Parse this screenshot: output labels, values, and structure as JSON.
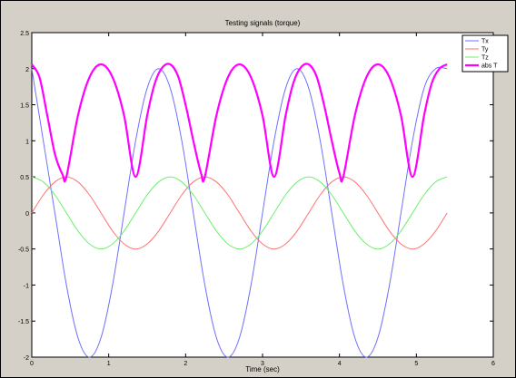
{
  "chart_data": {
    "type": "line",
    "title": "Testing signals (torque)",
    "xlabel": "Time (sec)",
    "ylabel": "",
    "xlim": [
      0,
      6
    ],
    "ylim": [
      -2,
      2.5
    ],
    "x_ticks": [
      "0",
      "1",
      "2",
      "3",
      "4",
      "5",
      "6"
    ],
    "y_ticks": [
      "-2",
      "-1.5",
      "-1",
      "-0.5",
      "0",
      "0.5",
      "1",
      "1.5",
      "2",
      "2.5"
    ],
    "grid": false,
    "legend_position": "top-right",
    "x_end": 5.4,
    "series": [
      {
        "name": "Tx",
        "color": "#6f6fff",
        "x": [
          0,
          0.3,
          0.45,
          0.6,
          0.75,
          0.9,
          1.05,
          1.2,
          1.35,
          1.5,
          1.65,
          1.8,
          1.95,
          2.1,
          2.25,
          2.4,
          2.55,
          2.7,
          2.85,
          3.0,
          3.15,
          3.3,
          3.45,
          3.6,
          3.75,
          3.9,
          4.05,
          4.2,
          4.35,
          4.5,
          4.65,
          4.8,
          4.95,
          5.1,
          5.25,
          5.4
        ],
        "y": [
          2.0,
          0.0,
          -1.0,
          -1.73,
          -2.0,
          -1.73,
          -1.0,
          0.0,
          1.0,
          1.73,
          2.0,
          1.73,
          1.0,
          0.0,
          -1.0,
          -1.73,
          -2.0,
          -1.73,
          -1.0,
          0.0,
          1.0,
          1.73,
          2.0,
          1.73,
          1.0,
          0.0,
          -1.0,
          -1.73,
          -2.0,
          -1.73,
          -1.0,
          0.0,
          1.0,
          1.73,
          2.0,
          2.0
        ]
      },
      {
        "name": "Ty",
        "color": "#ff7373",
        "x": [
          0,
          0.15,
          0.3,
          0.45,
          0.6,
          0.75,
          0.9,
          1.05,
          1.2,
          1.35,
          1.5,
          1.65,
          1.8,
          1.95,
          2.1,
          2.25,
          2.4,
          2.55,
          2.7,
          2.85,
          3.0,
          3.15,
          3.3,
          3.45,
          3.6,
          3.75,
          3.9,
          4.05,
          4.2,
          4.35,
          4.5,
          4.65,
          4.8,
          4.95,
          5.1,
          5.25,
          5.4
        ],
        "y": [
          0,
          0.25,
          0.43,
          0.5,
          0.43,
          0.25,
          0,
          -0.25,
          -0.43,
          -0.5,
          -0.43,
          -0.25,
          0,
          0.25,
          0.43,
          0.5,
          0.43,
          0.25,
          0,
          -0.25,
          -0.43,
          -0.5,
          -0.43,
          -0.25,
          0,
          0.25,
          0.43,
          0.5,
          0.43,
          0.25,
          0,
          -0.25,
          -0.43,
          -0.5,
          -0.43,
          -0.25,
          0
        ]
      },
      {
        "name": "Tz",
        "color": "#6fef6f",
        "x": [
          0,
          0.15,
          0.3,
          0.45,
          0.6,
          0.75,
          0.9,
          1.05,
          1.2,
          1.35,
          1.5,
          1.65,
          1.8,
          1.95,
          2.1,
          2.25,
          2.4,
          2.55,
          2.7,
          2.85,
          3.0,
          3.15,
          3.3,
          3.45,
          3.6,
          3.75,
          3.9,
          4.05,
          4.2,
          4.35,
          4.5,
          4.65,
          4.8,
          4.95,
          5.1,
          5.25,
          5.4
        ],
        "y": [
          0.5,
          0.43,
          0.25,
          0,
          -0.25,
          -0.43,
          -0.5,
          -0.43,
          -0.25,
          0,
          0.25,
          0.43,
          0.5,
          0.43,
          0.25,
          0,
          -0.25,
          -0.43,
          -0.5,
          -0.43,
          -0.25,
          0,
          0.25,
          0.43,
          0.5,
          0.43,
          0.25,
          0,
          -0.25,
          -0.43,
          -0.5,
          -0.43,
          -0.25,
          0,
          0.25,
          0.43,
          0.5
        ]
      },
      {
        "name": "abs T",
        "color": "#ff00ff",
        "x": [
          0,
          0.1,
          0.2,
          0.3,
          0.4,
          0.45,
          0.6,
          0.75,
          0.9,
          1.05,
          1.2,
          1.35,
          1.5,
          1.6,
          1.7,
          1.8,
          1.9,
          2.0,
          2.1,
          2.2,
          2.25,
          2.4,
          2.55,
          2.7,
          2.85,
          3.0,
          3.15,
          3.3,
          3.4,
          3.5,
          3.6,
          3.7,
          3.8,
          3.9,
          4.0,
          4.05,
          4.2,
          4.35,
          4.5,
          4.65,
          4.8,
          4.95,
          5.1,
          5.2,
          5.3,
          5.4
        ],
        "y": [
          2.06,
          1.88,
          1.36,
          0.82,
          0.53,
          0.5,
          1.35,
          1.88,
          2.06,
          1.88,
          1.35,
          0.5,
          1.35,
          1.8,
          2.02,
          2.06,
          1.9,
          1.5,
          1.0,
          0.55,
          0.5,
          1.35,
          1.88,
          2.06,
          1.88,
          1.35,
          0.5,
          1.35,
          1.8,
          2.02,
          2.06,
          1.9,
          1.5,
          1.0,
          0.55,
          0.5,
          1.35,
          1.88,
          2.06,
          1.88,
          1.35,
          0.5,
          1.35,
          1.8,
          2.0,
          2.06
        ]
      }
    ]
  }
}
